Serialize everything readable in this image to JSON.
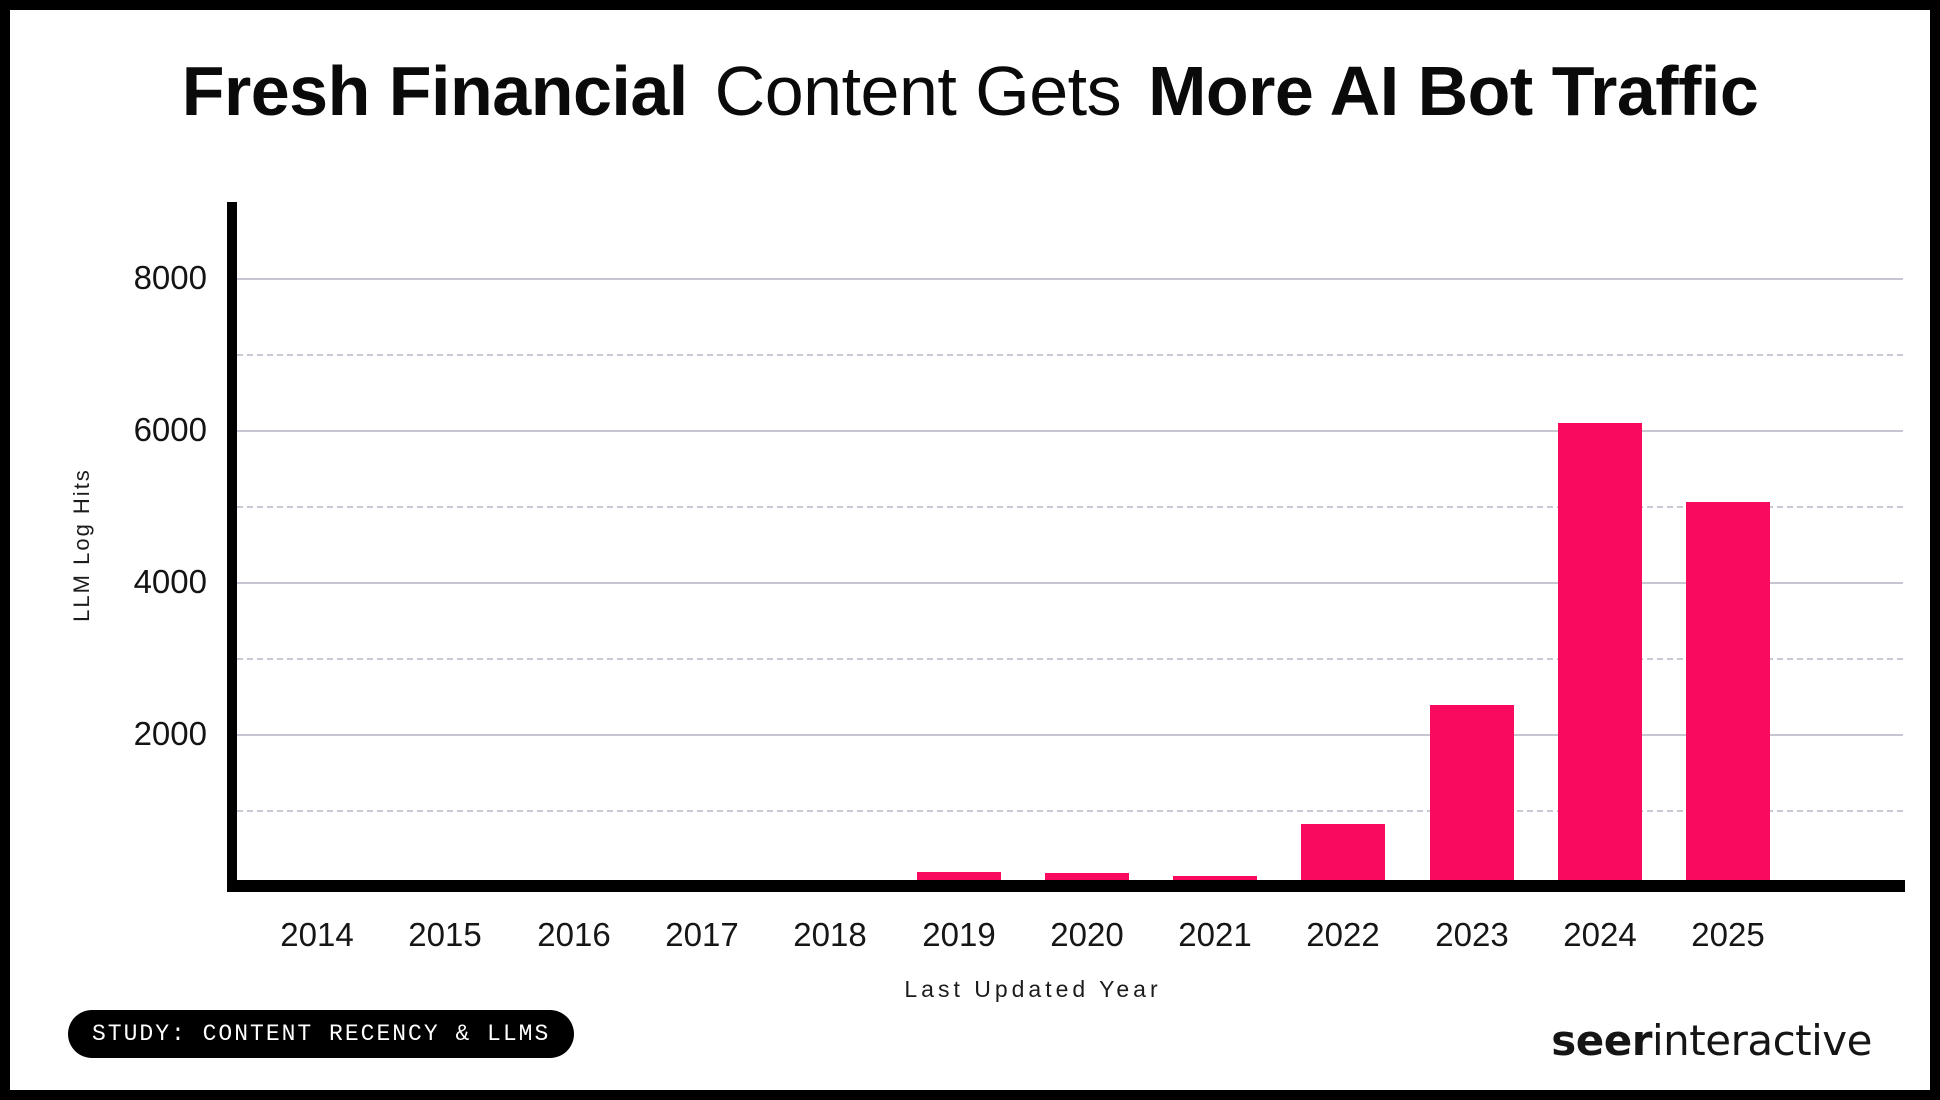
{
  "title": {
    "bold_lead": "Fresh Financial",
    "regular_mid": "Content Gets",
    "bold_tail": "More AI Bot Traffic"
  },
  "chart_data": {
    "type": "bar",
    "title": "Fresh Financial Content Gets More AI Bot Traffic",
    "xlabel": "Last Updated Year",
    "ylabel": "LLM Log Hits",
    "categories": [
      "2014",
      "2015",
      "2016",
      "2017",
      "2018",
      "2019",
      "2020",
      "2021",
      "2022",
      "2023",
      "2024",
      "2025"
    ],
    "values": [
      0,
      0,
      0,
      0,
      80,
      180,
      170,
      130,
      820,
      2380,
      6090,
      5050
    ],
    "ylim": [
      0,
      9000
    ],
    "yticks": [
      2000,
      4000,
      6000,
      8000
    ],
    "grid": {
      "solid_at": [
        2000,
        4000,
        6000,
        8000
      ],
      "dashed_at": [
        1000,
        3000,
        5000,
        7000
      ]
    },
    "legend_position": "none",
    "bar_color": "#FA0A5F"
  },
  "footer": {
    "badge_label": "STUDY: CONTENT RECENCY & LLMS",
    "brand_bold": "seer",
    "brand_regular": "interactive"
  },
  "colors": {
    "bar": "#FA0A5F",
    "grid_solid": "#c6c6d2",
    "grid_dashed": "#c9c9d6",
    "axis_spine": "#000000",
    "frame": "#000000",
    "text": "#141414",
    "badge_bg": "#000000",
    "badge_text": "#ffffff"
  }
}
